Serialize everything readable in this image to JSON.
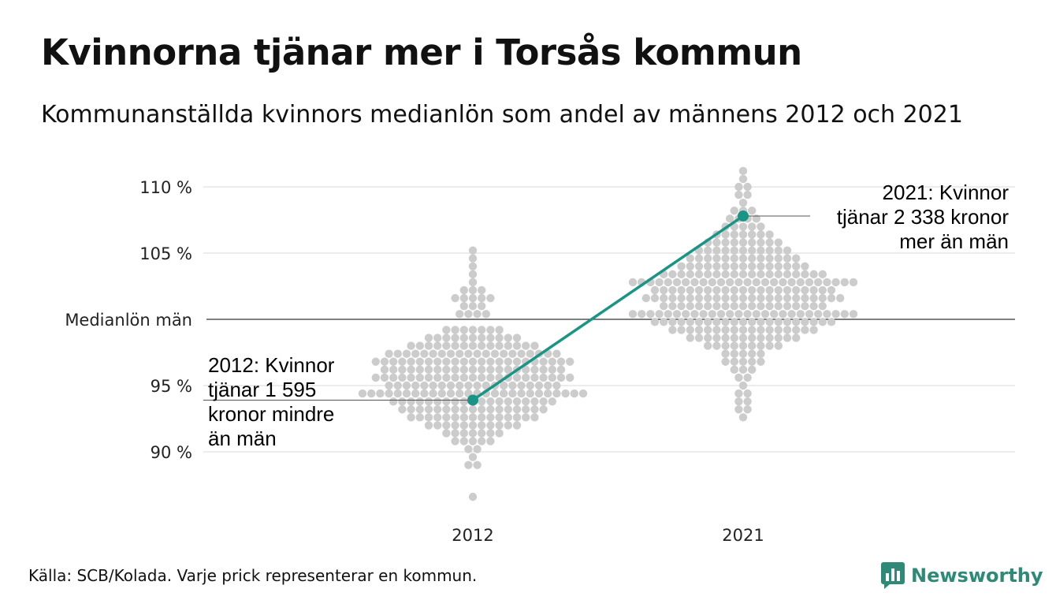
{
  "header": {
    "title": "Kvinnorna tjänar mer i Torsås kommun",
    "subtitle": "Kommunanställda kvinnors medianlön som andel av männens 2012 och 2021"
  },
  "footer": {
    "source": "Källa: SCB/Kolada. Varje prick representerar en kommun.",
    "brand": "Newsworthy"
  },
  "colors": {
    "dots": "#cccccc",
    "highlight": "#1a9485",
    "reference_line": "#333333",
    "grid": "#e6e6e6",
    "brand": "#2e8a76"
  },
  "chart_data": {
    "type": "scatter",
    "title": "Kvinnorna tjänar mer i Torsås kommun",
    "subtitle": "Kommunanställda kvinnors medianlön som andel av männens 2012 och 2021",
    "categories": [
      "2012",
      "2021"
    ],
    "ylim": [
      86,
      112
    ],
    "y_ticks": [
      {
        "value": 90,
        "label": "90 %"
      },
      {
        "value": 95,
        "label": "95 %"
      },
      {
        "value": 100,
        "label": "Medianlön män"
      },
      {
        "value": 105,
        "label": "105 %"
      },
      {
        "value": 110,
        "label": "110 %"
      }
    ],
    "grid": true,
    "reference_line": {
      "value": 100,
      "label": "Medianlön män"
    },
    "highlight": {
      "name": "Torsås",
      "values": [
        93.9,
        107.8
      ]
    },
    "annotations": [
      {
        "category": "2012",
        "value": 93.9,
        "lines": [
          "2012: Kvinnor",
          "tjänar 1 595",
          "kronor mindre",
          "än män"
        ]
      },
      {
        "category": "2021",
        "value": 107.8,
        "lines": [
          "2021: Kvinnor",
          "tjänar 2 338 kronor",
          "mer än män"
        ]
      }
    ],
    "distributions": [
      {
        "category": "2012",
        "bins": [
          {
            "value": 86.6,
            "count": 1
          },
          {
            "value": 89.0,
            "count": 2
          },
          {
            "value": 89.6,
            "count": 1
          },
          {
            "value": 90.2,
            "count": 2
          },
          {
            "value": 90.8,
            "count": 5
          },
          {
            "value": 91.4,
            "count": 7
          },
          {
            "value": 92.0,
            "count": 11
          },
          {
            "value": 92.6,
            "count": 15
          },
          {
            "value": 93.2,
            "count": 17
          },
          {
            "value": 93.8,
            "count": 19
          },
          {
            "value": 94.4,
            "count": 26
          },
          {
            "value": 95.0,
            "count": 20
          },
          {
            "value": 95.6,
            "count": 23
          },
          {
            "value": 96.2,
            "count": 21
          },
          {
            "value": 96.8,
            "count": 23
          },
          {
            "value": 97.4,
            "count": 20
          },
          {
            "value": 98.0,
            "count": 15
          },
          {
            "value": 98.6,
            "count": 11
          },
          {
            "value": 99.2,
            "count": 7
          },
          {
            "value": 100.4,
            "count": 4
          },
          {
            "value": 101.0,
            "count": 3
          },
          {
            "value": 101.6,
            "count": 5
          },
          {
            "value": 102.2,
            "count": 3
          },
          {
            "value": 102.8,
            "count": 1
          },
          {
            "value": 103.4,
            "count": 1
          },
          {
            "value": 104.0,
            "count": 1
          },
          {
            "value": 104.6,
            "count": 1
          },
          {
            "value": 105.2,
            "count": 1
          }
        ]
      },
      {
        "category": "2021",
        "bins": [
          {
            "value": 92.6,
            "count": 1
          },
          {
            "value": 93.2,
            "count": 2
          },
          {
            "value": 93.8,
            "count": 2
          },
          {
            "value": 94.4,
            "count": 2
          },
          {
            "value": 95.0,
            "count": 1
          },
          {
            "value": 95.6,
            "count": 2
          },
          {
            "value": 96.2,
            "count": 3
          },
          {
            "value": 96.8,
            "count": 5
          },
          {
            "value": 97.4,
            "count": 5
          },
          {
            "value": 98.0,
            "count": 9
          },
          {
            "value": 98.6,
            "count": 13
          },
          {
            "value": 99.2,
            "count": 17
          },
          {
            "value": 99.8,
            "count": 21
          },
          {
            "value": 100.4,
            "count": 26
          },
          {
            "value": 101.0,
            "count": 19
          },
          {
            "value": 101.6,
            "count": 23
          },
          {
            "value": 102.2,
            "count": 21
          },
          {
            "value": 102.8,
            "count": 26
          },
          {
            "value": 103.4,
            "count": 19
          },
          {
            "value": 104.0,
            "count": 15
          },
          {
            "value": 104.6,
            "count": 13
          },
          {
            "value": 105.2,
            "count": 11
          },
          {
            "value": 105.8,
            "count": 9
          },
          {
            "value": 106.4,
            "count": 7
          },
          {
            "value": 107.0,
            "count": 5
          },
          {
            "value": 107.6,
            "count": 4
          },
          {
            "value": 108.2,
            "count": 3
          },
          {
            "value": 108.8,
            "count": 1
          },
          {
            "value": 109.4,
            "count": 2
          },
          {
            "value": 110.0,
            "count": 2
          },
          {
            "value": 110.6,
            "count": 1
          },
          {
            "value": 111.2,
            "count": 1
          }
        ]
      }
    ]
  }
}
